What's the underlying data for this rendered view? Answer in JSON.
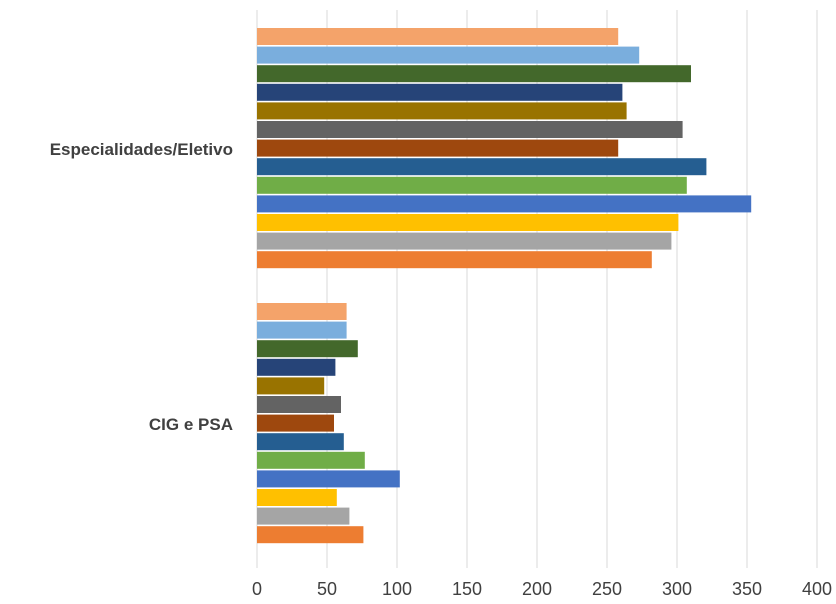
{
  "chart_data": {
    "type": "bar",
    "orientation": "horizontal",
    "categories": [
      "Especialidades/Eletivo",
      "CIG e PSA"
    ],
    "xlim": [
      0,
      400
    ],
    "x_ticks": [
      "0",
      "50",
      "100",
      "150",
      "200",
      "250",
      "300",
      "350",
      "400"
    ],
    "grid": "vertical",
    "legend": "none",
    "series": [
      {
        "color": "#F4A36A",
        "values": [
          258,
          64
        ]
      },
      {
        "color": "#7AAEDD",
        "values": [
          273,
          64
        ]
      },
      {
        "color": "#43682B",
        "values": [
          310,
          72
        ]
      },
      {
        "color": "#264478",
        "values": [
          261,
          56
        ]
      },
      {
        "color": "#997300",
        "values": [
          264,
          48
        ]
      },
      {
        "color": "#636363",
        "values": [
          304,
          60
        ]
      },
      {
        "color": "#9E480E",
        "values": [
          258,
          55
        ]
      },
      {
        "color": "#255E91",
        "values": [
          321,
          62
        ]
      },
      {
        "color": "#70AD47",
        "values": [
          307,
          77
        ]
      },
      {
        "color": "#4472C4",
        "values": [
          353,
          102
        ]
      },
      {
        "color": "#FFC000",
        "values": [
          301,
          57
        ]
      },
      {
        "color": "#A5A5A5",
        "values": [
          296,
          66
        ]
      },
      {
        "color": "#ED7D31",
        "values": [
          282,
          76
        ]
      }
    ]
  }
}
